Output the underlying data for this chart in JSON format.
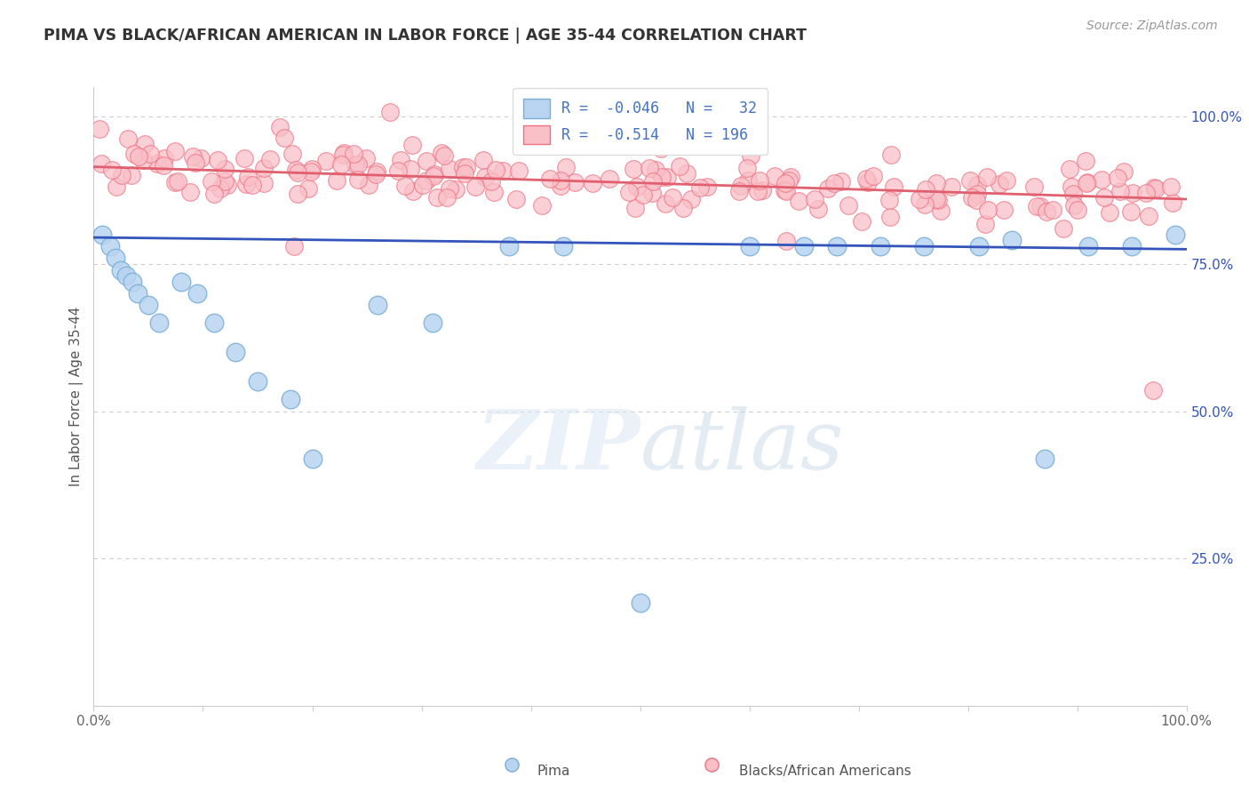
{
  "title": "PIMA VS BLACK/AFRICAN AMERICAN IN LABOR FORCE | AGE 35-44 CORRELATION CHART",
  "source": "Source: ZipAtlas.com",
  "ylabel": "In Labor Force | Age 35-44",
  "right_ytick_labels": [
    "100.0%",
    "75.0%",
    "50.0%",
    "25.0%"
  ],
  "right_ytick_values": [
    1.0,
    0.75,
    0.5,
    0.25
  ],
  "pima_color": "#b8d4f0",
  "pima_edge": "#7aaed6",
  "pink_color": "#f9c0c8",
  "pink_edge": "#f07080",
  "pima_line_color": "#3355bb",
  "pink_line_color": "#e06070",
  "legend_label_color": "#4472c4",
  "background_color": "#ffffff",
  "dotted_line_color": "#cccccc",
  "xlim": [
    0.0,
    1.0
  ],
  "ylim": [
    0.0,
    1.05
  ],
  "pima_intercept": 0.795,
  "pima_slope": -0.02,
  "pink_intercept": 0.915,
  "pink_slope": -0.055
}
